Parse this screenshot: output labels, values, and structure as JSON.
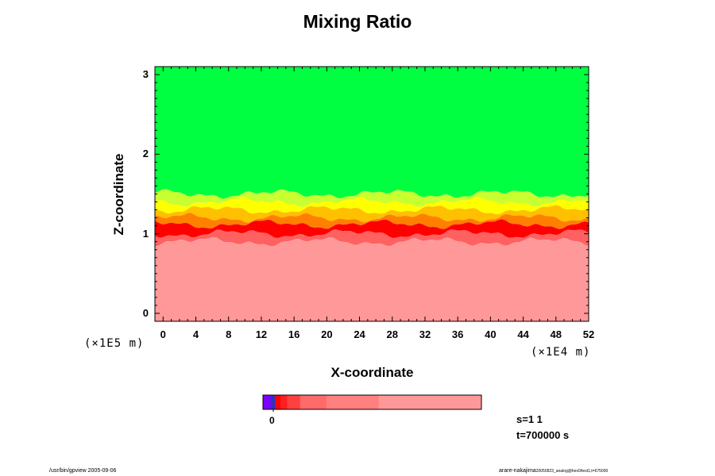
{
  "chart_data": {
    "type": "heatmap",
    "title": "Mixing Ratio",
    "xlabel": "X-coordinate",
    "ylabel": "Z-coordinate",
    "x_scale_label": "(×1E4 m)",
    "y_scale_label": "(×1E5 m)",
    "xlim": [
      -1,
      52
    ],
    "ylim": [
      -0.1,
      3.1
    ],
    "x_ticks": [
      0,
      4,
      8,
      12,
      16,
      20,
      24,
      28,
      32,
      36,
      40,
      44,
      48,
      52
    ],
    "y_ticks": [
      0,
      1,
      2,
      3
    ],
    "grid": false,
    "colorbar": {
      "orientation": "horizontal",
      "tick_labels": [
        "0"
      ],
      "colors": [
        "#7f00ff",
        "#3030c0",
        "#ff0000",
        "#ff2020",
        "#ff4040",
        "#ff6a6a",
        "#ff8080",
        "#ff9999"
      ]
    },
    "layers": [
      {
        "color": "#00ff40",
        "z_range": [
          1.5,
          3.1
        ]
      },
      {
        "color": "#c8ff30",
        "z_range": [
          1.4,
          1.5
        ]
      },
      {
        "color": "#ffff00",
        "z_range": [
          1.3,
          1.4
        ]
      },
      {
        "color": "#ffc000",
        "z_range": [
          1.2,
          1.3
        ]
      },
      {
        "color": "#ff8000",
        "z_range": [
          1.12,
          1.2
        ]
      },
      {
        "color": "#ff0000",
        "z_range": [
          1.0,
          1.12
        ]
      },
      {
        "color": "#ff6060",
        "z_range": [
          0.9,
          1.0
        ]
      },
      {
        "color": "#ff9999",
        "z_range": [
          -0.1,
          0.9
        ]
      }
    ],
    "annotations": [
      "s=1 1",
      "t=700000 s"
    ]
  },
  "footer": {
    "left": "/usr/bin/gpview 2005-09-06",
    "right_main": "arare-nakajima",
    "right_small": "20050823_analog@hex0/test1,t=675000"
  }
}
